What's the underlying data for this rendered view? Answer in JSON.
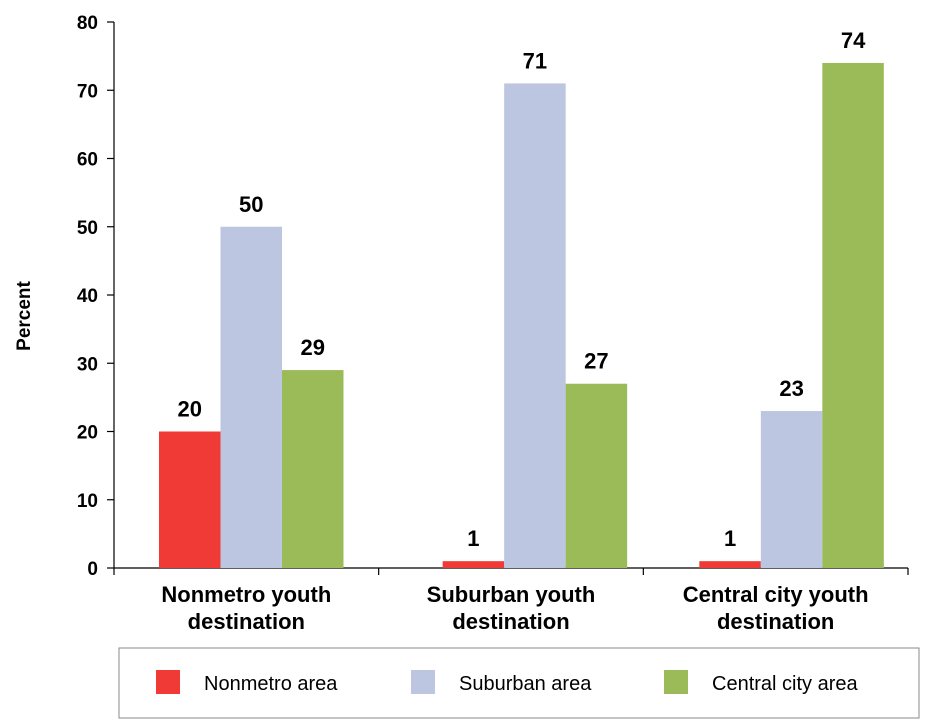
{
  "chart_data": {
    "type": "bar",
    "title": "",
    "xlabel": "",
    "ylabel": "Percent",
    "ylim": [
      0,
      80
    ],
    "yticks": [
      0,
      10,
      20,
      30,
      40,
      50,
      60,
      70,
      80
    ],
    "categories": [
      [
        "Nonmetro youth",
        "destination"
      ],
      [
        "Suburban youth",
        "destination"
      ],
      [
        "Central city youth",
        "destination"
      ]
    ],
    "series": [
      {
        "name": "Nonmetro area",
        "color": "#f03a36",
        "values": [
          20,
          1,
          1
        ]
      },
      {
        "name": "Suburban area",
        "color": "#bcc6e0",
        "values": [
          50,
          71,
          23
        ]
      },
      {
        "name": "Central city area",
        "color": "#9bbb59",
        "values": [
          29,
          27,
          74
        ]
      }
    ],
    "grid": false,
    "legend_position": "bottom",
    "data_labels": true
  }
}
